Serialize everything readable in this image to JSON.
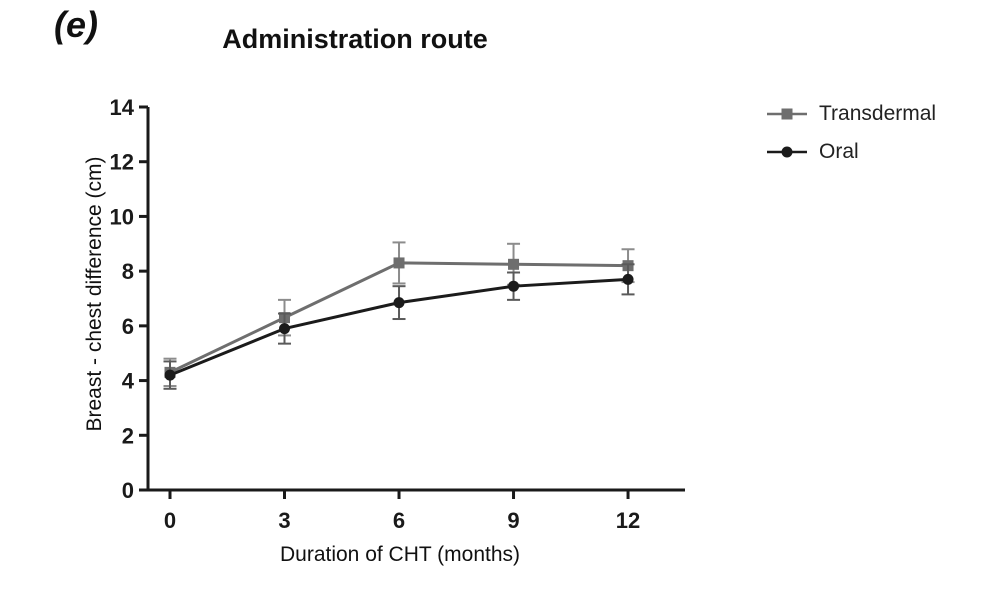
{
  "panel_label": "(e)",
  "chart_data": {
    "type": "line",
    "title": "Administration route",
    "xlabel": "Duration of CHT (months)",
    "ylabel": "Breast - chest difference (cm)",
    "x": [
      0,
      3,
      6,
      9,
      12
    ],
    "xticks": [
      0,
      3,
      6,
      9,
      12
    ],
    "xlim": [
      -1.5,
      13.5
    ],
    "ylim": [
      0,
      14
    ],
    "yticks": [
      0,
      2,
      4,
      6,
      8,
      10,
      12,
      14
    ],
    "grid": false,
    "legend_position": "right",
    "series": [
      {
        "name": "Transdermal",
        "marker": "square",
        "color": "#6e6e6e",
        "error_color": "#8c8c8c",
        "values": [
          4.3,
          6.3,
          8.3,
          8.25,
          8.2
        ],
        "errors": [
          0.5,
          0.65,
          0.75,
          0.75,
          0.6
        ]
      },
      {
        "name": "Oral",
        "marker": "circle",
        "color": "#1b1b1b",
        "error_color": "#5a5a5a",
        "values": [
          4.2,
          5.9,
          6.85,
          7.45,
          7.7
        ],
        "errors": [
          0.5,
          0.55,
          0.6,
          0.5,
          0.55
        ]
      }
    ]
  }
}
